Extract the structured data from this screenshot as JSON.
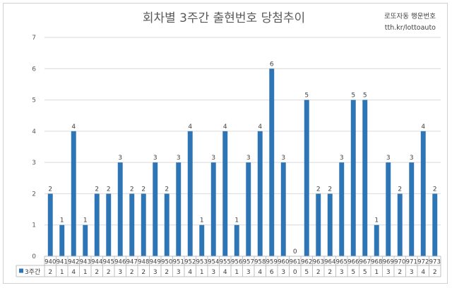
{
  "chart_data": {
    "type": "bar",
    "title": "회차별 3주간 출현번호 당첨추이",
    "watermark": [
      "로또자동 행운번호",
      "tth.kr/lottoauto"
    ],
    "categories": [
      "940",
      "941",
      "942",
      "943",
      "944",
      "945",
      "946",
      "947",
      "948",
      "949",
      "950",
      "951",
      "952",
      "953",
      "954",
      "955",
      "956",
      "957",
      "958",
      "959",
      "960",
      "961",
      "962",
      "963",
      "964",
      "965",
      "966",
      "967",
      "968",
      "969",
      "970",
      "971",
      "972",
      "973"
    ],
    "series": [
      {
        "name": "3주간",
        "color": "#2e75b6",
        "values": [
          2,
          1,
          4,
          1,
          2,
          2,
          3,
          2,
          2,
          3,
          2,
          3,
          4,
          1,
          3,
          4,
          1,
          3,
          4,
          6,
          3,
          0,
          5,
          2,
          2,
          3,
          5,
          5,
          1,
          3,
          2,
          3,
          4,
          2
        ]
      }
    ],
    "ylim": [
      0,
      7
    ],
    "yticks": [
      0,
      1,
      2,
      3,
      4,
      5,
      6,
      7
    ],
    "grid": true,
    "data_table": true,
    "xlabel": "",
    "ylabel": ""
  }
}
